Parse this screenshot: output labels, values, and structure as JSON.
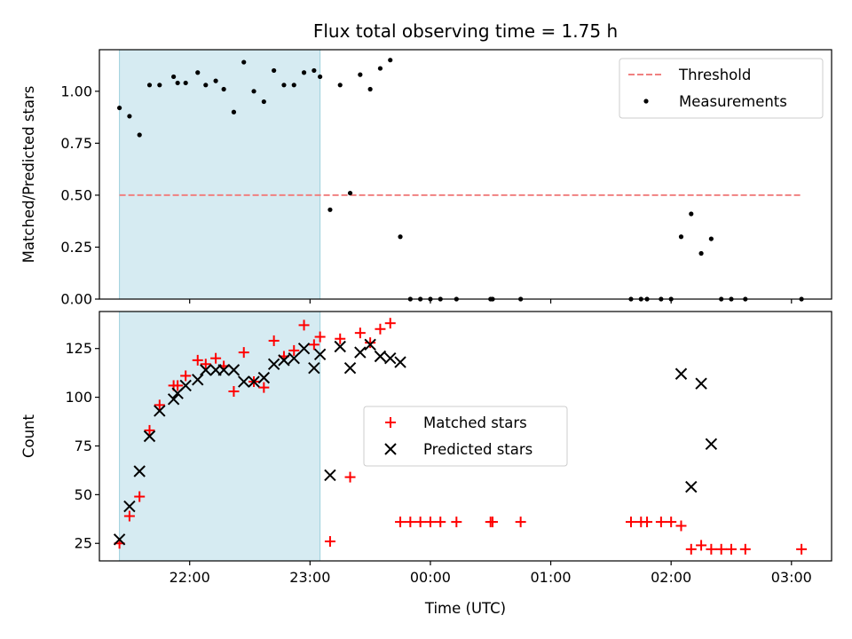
{
  "figure": {
    "title": "Flux total observing time = 1.75 h",
    "xlabel": "Time (UTC)"
  },
  "chart_data": [
    {
      "type": "scatter",
      "panel": "top",
      "ylabel": "Matched/Predicted stars",
      "ylim": [
        0,
        1.2
      ],
      "yticks": [
        0.0,
        0.25,
        0.5,
        0.75,
        1.0
      ],
      "ytick_labels": [
        "0.00",
        "0.25",
        "0.50",
        "0.75",
        "1.00"
      ],
      "xlim": [
        "21:15",
        "03:20"
      ],
      "xticks": [
        "22:00",
        "23:00",
        "00:00",
        "01:00",
        "02:00",
        "03:00"
      ],
      "shaded_span": [
        "21:25",
        "23:05"
      ],
      "threshold": {
        "name": "Threshold",
        "value": 0.5,
        "x_range": [
          "21:25",
          "03:05"
        ],
        "color": "#f08080",
        "style": "dashed"
      },
      "legend": {
        "placement": "top-right",
        "entries": [
          "Threshold",
          "Measurements"
        ]
      },
      "series": [
        {
          "name": "Measurements",
          "marker": "dot",
          "color": "#000000",
          "points": [
            [
              "21:25",
              0.92
            ],
            [
              "21:30",
              0.88
            ],
            [
              "21:35",
              0.79
            ],
            [
              "21:40",
              1.03
            ],
            [
              "21:45",
              1.03
            ],
            [
              "21:52",
              1.07
            ],
            [
              "21:54",
              1.04
            ],
            [
              "21:58",
              1.04
            ],
            [
              "22:04",
              1.09
            ],
            [
              "22:08",
              1.03
            ],
            [
              "22:13",
              1.05
            ],
            [
              "22:17",
              1.01
            ],
            [
              "22:22",
              0.9
            ],
            [
              "22:27",
              1.14
            ],
            [
              "22:32",
              1.0
            ],
            [
              "22:37",
              0.95
            ],
            [
              "22:42",
              1.1
            ],
            [
              "22:47",
              1.03
            ],
            [
              "22:52",
              1.03
            ],
            [
              "22:57",
              1.09
            ],
            [
              "23:02",
              1.1
            ],
            [
              "23:05",
              1.07
            ],
            [
              "23:10",
              0.43
            ],
            [
              "23:15",
              1.03
            ],
            [
              "23:20",
              0.51
            ],
            [
              "23:25",
              1.08
            ],
            [
              "23:30",
              1.01
            ],
            [
              "23:35",
              1.11
            ],
            [
              "23:40",
              1.15
            ],
            [
              "23:45",
              0.3
            ],
            [
              "23:50",
              0.0
            ],
            [
              "23:55",
              0.0
            ],
            [
              "00:00",
              0.0
            ],
            [
              "00:05",
              0.0
            ],
            [
              "00:13",
              0.0
            ],
            [
              "00:30",
              0.0
            ],
            [
              "00:31",
              0.0
            ],
            [
              "00:45",
              0.0
            ],
            [
              "01:40",
              0.0
            ],
            [
              "01:45",
              0.0
            ],
            [
              "01:48",
              0.0
            ],
            [
              "01:55",
              0.0
            ],
            [
              "02:00",
              0.0
            ],
            [
              "02:05",
              0.3
            ],
            [
              "02:10",
              0.41
            ],
            [
              "02:15",
              0.22
            ],
            [
              "02:20",
              0.29
            ],
            [
              "02:25",
              0.0
            ],
            [
              "02:30",
              0.0
            ],
            [
              "02:37",
              0.0
            ],
            [
              "03:05",
              0.0
            ]
          ]
        }
      ]
    },
    {
      "type": "scatter",
      "panel": "bottom",
      "ylabel": "Count",
      "ylim": [
        16,
        144
      ],
      "yticks": [
        25,
        50,
        75,
        100,
        125
      ],
      "ytick_labels": [
        "25",
        "50",
        "75",
        "100",
        "125"
      ],
      "xlim": [
        "21:15",
        "03:20"
      ],
      "xticks": [
        "22:00",
        "23:00",
        "00:00",
        "01:00",
        "02:00",
        "03:00"
      ],
      "xtick_labels": [
        "22:00",
        "23:00",
        "00:00",
        "01:00",
        "02:00",
        "03:00"
      ],
      "shaded_span": [
        "21:25",
        "23:05"
      ],
      "legend": {
        "placement": "center",
        "entries": [
          "Matched stars",
          "Predicted stars"
        ]
      },
      "series": [
        {
          "name": "Matched stars",
          "marker": "plus",
          "color": "#ff0000",
          "points": [
            [
              "21:25",
              25
            ],
            [
              "21:30",
              39
            ],
            [
              "21:35",
              49
            ],
            [
              "21:40",
              83
            ],
            [
              "21:45",
              96
            ],
            [
              "21:52",
              106
            ],
            [
              "21:54",
              106
            ],
            [
              "21:58",
              111
            ],
            [
              "22:04",
              119
            ],
            [
              "22:08",
              117
            ],
            [
              "22:13",
              120
            ],
            [
              "22:17",
              116
            ],
            [
              "22:22",
              103
            ],
            [
              "22:27",
              123
            ],
            [
              "22:32",
              108
            ],
            [
              "22:37",
              105
            ],
            [
              "22:42",
              129
            ],
            [
              "22:47",
              121
            ],
            [
              "22:52",
              124
            ],
            [
              "22:57",
              137
            ],
            [
              "23:02",
              127
            ],
            [
              "23:05",
              131
            ],
            [
              "23:10",
              26
            ],
            [
              "23:15",
              130
            ],
            [
              "23:20",
              59
            ],
            [
              "23:25",
              133
            ],
            [
              "23:30",
              128
            ],
            [
              "23:35",
              135
            ],
            [
              "23:40",
              138
            ],
            [
              "23:45",
              36
            ],
            [
              "23:50",
              36
            ],
            [
              "23:55",
              36
            ],
            [
              "00:00",
              36
            ],
            [
              "00:05",
              36
            ],
            [
              "00:13",
              36
            ],
            [
              "00:30",
              36
            ],
            [
              "00:31",
              36
            ],
            [
              "00:45",
              36
            ],
            [
              "01:40",
              36
            ],
            [
              "01:45",
              36
            ],
            [
              "01:48",
              36
            ],
            [
              "01:55",
              36
            ],
            [
              "02:00",
              36
            ],
            [
              "02:05",
              34
            ],
            [
              "02:10",
              22
            ],
            [
              "02:15",
              24
            ],
            [
              "02:20",
              22
            ],
            [
              "02:25",
              22
            ],
            [
              "02:30",
              22
            ],
            [
              "02:37",
              22
            ],
            [
              "03:05",
              22
            ]
          ]
        },
        {
          "name": "Predicted stars",
          "marker": "x",
          "color": "#000000",
          "points": [
            [
              "21:25",
              27
            ],
            [
              "21:30",
              44
            ],
            [
              "21:35",
              62
            ],
            [
              "21:40",
              80
            ],
            [
              "21:45",
              93
            ],
            [
              "21:52",
              99
            ],
            [
              "21:54",
              102
            ],
            [
              "21:58",
              106
            ],
            [
              "22:04",
              109
            ],
            [
              "22:08",
              114
            ],
            [
              "22:13",
              114
            ],
            [
              "22:17",
              114
            ],
            [
              "22:22",
              114
            ],
            [
              "22:27",
              108
            ],
            [
              "22:32",
              108
            ],
            [
              "22:37",
              110
            ],
            [
              "22:42",
              117
            ],
            [
              "22:47",
              119
            ],
            [
              "22:52",
              120
            ],
            [
              "22:57",
              125
            ],
            [
              "23:02",
              115
            ],
            [
              "23:05",
              122
            ],
            [
              "23:10",
              60
            ],
            [
              "23:15",
              126
            ],
            [
              "23:20",
              115
            ],
            [
              "23:25",
              123
            ],
            [
              "23:30",
              127
            ],
            [
              "23:35",
              121
            ],
            [
              "23:40",
              120
            ],
            [
              "23:45",
              118
            ],
            [
              "02:05",
              112
            ],
            [
              "02:10",
              54
            ],
            [
              "02:15",
              107
            ],
            [
              "02:20",
              76
            ]
          ]
        }
      ]
    }
  ]
}
